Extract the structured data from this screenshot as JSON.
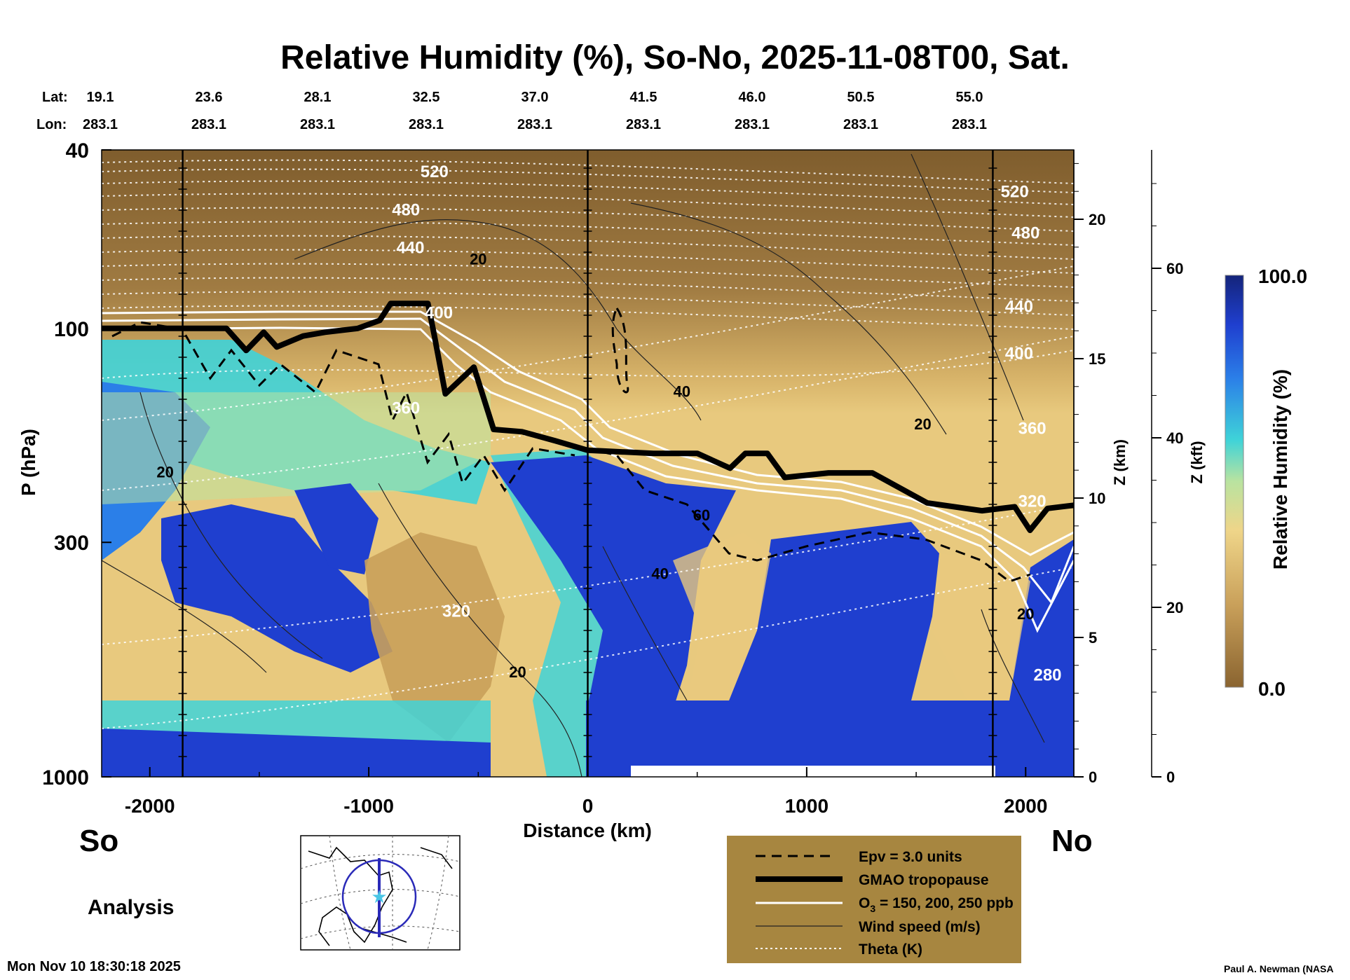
{
  "chart_data": {
    "type": "heatmap",
    "title": "Relative Humidity (%), So-No, 2025-11-08T00, Sat.",
    "xlabel": "Distance (km)",
    "ylabel_left": "P (hPa)",
    "ylabel_right_km": "Z (km)",
    "ylabel_right_kft": "Z (kft)",
    "colorbar_label": "Relative Humidity (%)",
    "colorbar_max_label": "100.0",
    "colorbar_min_label": "0.0",
    "colorbar_range": [
      0,
      100
    ],
    "xlim": [
      -2220,
      2220
    ],
    "ylim_hpa": [
      1000,
      40
    ],
    "x_ticks": [
      "-2000",
      "-1000",
      "0",
      "1000",
      "2000"
    ],
    "x_tick_values": [
      -2000,
      -1000,
      0,
      1000,
      2000
    ],
    "y_ticks": [
      "40",
      "100",
      "300",
      "1000"
    ],
    "y_tick_values": [
      40,
      100,
      300,
      1000
    ],
    "z_km_ticks": [
      "0",
      "5",
      "10",
      "15",
      "20"
    ],
    "z_km_values": [
      0,
      5,
      10,
      15,
      20
    ],
    "z_kft_ticks": [
      "0",
      "20",
      "40",
      "60"
    ],
    "z_kft_values": [
      0,
      20,
      40,
      60
    ],
    "lat_label": "Lat:",
    "lon_label": "Lon:",
    "lat_values": [
      "19.1",
      "23.6",
      "28.1",
      "32.5",
      "37.0",
      "41.5",
      "46.0",
      "50.5",
      "55.0"
    ],
    "lon_values": [
      "283.1",
      "283.1",
      "283.1",
      "283.1",
      "283.1",
      "283.1",
      "283.1",
      "283.1",
      "283.1"
    ],
    "station_lines_km": [
      -1850,
      0,
      1850
    ],
    "tropopause": {
      "x": [
        -2220,
        -1650,
        -1560,
        -1480,
        -1420,
        -1300,
        -1200,
        -1050,
        -950,
        -900,
        -850,
        -730,
        -700,
        -650,
        -520,
        -430,
        -300,
        -150,
        0,
        300,
        500,
        650,
        720,
        820,
        900,
        1100,
        1300,
        1550,
        1800,
        1950,
        2020,
        2100,
        2220
      ],
      "p": [
        100,
        100,
        112,
        102,
        110,
        104,
        102,
        100,
        96,
        88,
        88,
        88,
        104,
        140,
        122,
        168,
        170,
        178,
        187,
        190,
        190,
        205,
        190,
        190,
        215,
        210,
        210,
        245,
        255,
        250,
        282,
        252,
        248
      ]
    },
    "theta_contours": [
      {
        "label": "520",
        "label_x": -700,
        "label_p": 46
      },
      {
        "label": "480",
        "label_x": -830,
        "label_p": 56
      },
      {
        "label": "440",
        "label_x": -810,
        "label_p": 68
      },
      {
        "label": "400",
        "label_x": -680,
        "label_p": 95
      },
      {
        "label": "360",
        "label_x": -830,
        "label_p": 155
      },
      {
        "label": "320",
        "label_x": -600,
        "label_p": 440
      },
      {
        "label": "520",
        "label_x": 1950,
        "label_p": 51
      },
      {
        "label": "480",
        "label_x": 2000,
        "label_p": 63
      },
      {
        "label": "440",
        "label_x": 1970,
        "label_p": 92
      },
      {
        "label": "400",
        "label_x": 1970,
        "label_p": 117
      },
      {
        "label": "360",
        "label_x": 2030,
        "label_p": 172
      },
      {
        "label": "320",
        "label_x": 2030,
        "label_p": 250
      },
      {
        "label": "280",
        "label_x": 2100,
        "label_p": 610
      }
    ],
    "wind_speed_labels": [
      {
        "label": "20",
        "x": -500,
        "p": 72
      },
      {
        "label": "40",
        "x": 430,
        "p": 142
      },
      {
        "label": "20",
        "x": 1530,
        "p": 168
      },
      {
        "label": "20",
        "x": -1930,
        "p": 215
      },
      {
        "label": "60",
        "x": 520,
        "p": 268
      },
      {
        "label": "40",
        "x": 330,
        "p": 362
      },
      {
        "label": "20",
        "x": -320,
        "p": 600
      },
      {
        "label": "20",
        "x": 2000,
        "p": 445
      }
    ],
    "legend": [
      {
        "style": "dashed-black",
        "label": "Epv = 3.0 units"
      },
      {
        "style": "thick-black",
        "label": "GMAO tropopause"
      },
      {
        "style": "white",
        "label_prefix": "O",
        "label_sub": "3",
        "label_suffix": " = 150, 200, 250 ppb"
      },
      {
        "style": "thin-black",
        "label": "Wind speed (m/s)"
      },
      {
        "style": "dotted-white",
        "label": "Theta (K)"
      }
    ]
  },
  "labels": {
    "south": "So",
    "north": "No",
    "analysis": "Analysis",
    "timestamp": "Mon Nov 10 18:30:18 2025",
    "credit": "Paul A. Newman (NASA"
  },
  "colors": {
    "humid": "#1a2da8",
    "dry": "#8a6430",
    "legend_bg": "#a78640"
  },
  "map_inset": {
    "marker": "star-icon"
  }
}
